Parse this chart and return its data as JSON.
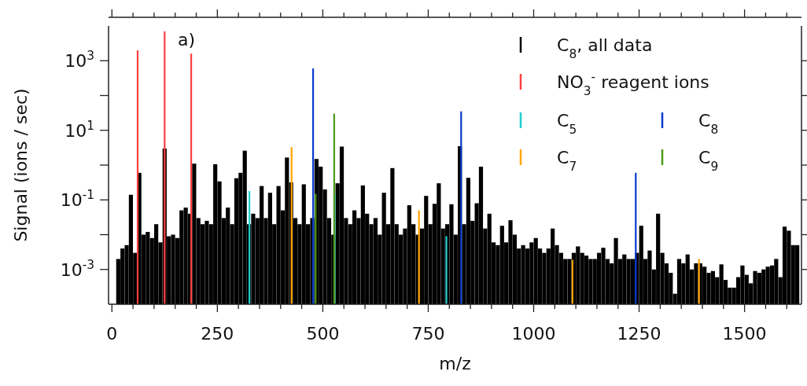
{
  "chart_data": {
    "type": "bar",
    "xlabel": "m/z",
    "ylabel": "Signal (ions / sec)",
    "log": "y",
    "legend": "top right",
    "annotations": [
      "a)"
    ],
    "xlim": [
      -8,
      1635
    ],
    "xticks": [
      0,
      {
        "value": 50,
        "label": null
      },
      {
        "value": 100,
        "label": null
      },
      {
        "value": 150,
        "label": null
      },
      {
        "value": 200,
        "label": null
      },
      250,
      {
        "value": 300,
        "label": null
      },
      {
        "value": 350,
        "label": null
      },
      {
        "value": 400,
        "label": null
      },
      {
        "value": 450,
        "label": null
      },
      500,
      {
        "value": 550,
        "label": null
      },
      {
        "value": 600,
        "label": null
      },
      {
        "value": 650,
        "label": null
      },
      {
        "value": 700,
        "label": null
      },
      750,
      {
        "value": 800,
        "label": null
      },
      {
        "value": 850,
        "label": null
      },
      {
        "value": 900,
        "label": null
      },
      {
        "value": 950,
        "label": null
      },
      1000,
      {
        "value": 1050,
        "label": null
      },
      {
        "value": 1100,
        "label": null
      },
      {
        "value": 1150,
        "label": null
      },
      {
        "value": 1200,
        "label": null
      },
      1250,
      {
        "value": 1300,
        "label": null
      },
      {
        "value": 1350,
        "label": null
      },
      {
        "value": 1400,
        "label": null
      },
      {
        "value": 1450,
        "label": null
      },
      1500,
      {
        "value": 1550,
        "label": null
      },
      {
        "value": 1600,
        "label": null
      }
    ],
    "ylim": [
      0.0001,
      10000
    ],
    "yticks": [
      {
        "value": 0.001,
        "label": "10$^{-3}$"
      },
      {
        "value": 0.01,
        "label": null
      },
      {
        "value": 0.1,
        "label": "10$^{-1}$"
      },
      {
        "value": 1,
        "label": null
      },
      {
        "value": 10,
        "label": "10$^{1}$"
      },
      {
        "value": 100,
        "label": null
      },
      {
        "value": 1000,
        "label": "10$^{3}$"
      }
    ],
    "series": [
      {
        "name": "C$_{8}$, all data",
        "color": "#000000",
        "x": [
          15,
          25,
          35,
          45,
          55,
          65,
          75,
          85,
          95,
          105,
          115,
          125,
          135,
          145,
          155,
          165,
          175,
          185,
          195,
          205,
          215,
          225,
          235,
          245,
          255,
          265,
          275,
          285,
          295,
          305,
          315,
          325,
          335,
          345,
          355,
          365,
          375,
          385,
          395,
          405,
          415,
          425,
          435,
          445,
          455,
          465,
          475,
          485,
          495,
          505,
          515,
          525,
          535,
          545,
          555,
          565,
          575,
          585,
          595,
          605,
          615,
          625,
          635,
          645,
          655,
          665,
          675,
          685,
          695,
          705,
          715,
          725,
          735,
          745,
          755,
          765,
          775,
          785,
          795,
          805,
          815,
          825,
          835,
          845,
          855,
          865,
          875,
          885,
          895,
          905,
          915,
          925,
          935,
          945,
          955,
          965,
          975,
          985,
          995,
          1005,
          1015,
          1025,
          1035,
          1045,
          1055,
          1065,
          1075,
          1085,
          1095,
          1105,
          1115,
          1125,
          1135,
          1145,
          1155,
          1165,
          1175,
          1185,
          1195,
          1205,
          1215,
          1225,
          1235,
          1245,
          1255,
          1265,
          1275,
          1285,
          1295,
          1305,
          1315,
          1325,
          1335,
          1345,
          1355,
          1365,
          1375,
          1385,
          1395,
          1405,
          1415,
          1425,
          1435,
          1445,
          1455,
          1465,
          1475,
          1485,
          1495,
          1505,
          1515,
          1525,
          1535,
          1545,
          1555,
          1565,
          1575,
          1585,
          1595,
          1605,
          1615,
          1625
        ],
        "values": [
          0.002,
          0.004,
          0.005,
          0.14,
          0.003,
          0.6,
          0.01,
          0.012,
          0.008,
          0.02,
          0.006,
          3,
          0.009,
          0.01,
          0.008,
          0.05,
          0.06,
          0.04,
          1.1,
          0.03,
          0.02,
          0.025,
          0.02,
          1.06,
          0.34,
          0.03,
          0.06,
          0.02,
          0.42,
          0.6,
          2.6,
          0.02,
          0.04,
          0.03,
          0.25,
          0.03,
          0.16,
          0.02,
          0.25,
          0.05,
          1.65,
          0.32,
          0.03,
          0.02,
          0.28,
          0.02,
          0.03,
          1.5,
          0.9,
          0.2,
          0.03,
          0.01,
          0.3,
          3.4,
          0.03,
          0.02,
          0.05,
          0.03,
          0.26,
          0.04,
          0.02,
          0.03,
          0.01,
          0.16,
          0.02,
          0.82,
          0.02,
          0.01,
          0.015,
          0.07,
          0.02,
          0.01,
          0.015,
          0.13,
          0.02,
          0.077,
          0.3,
          0.015,
          0.02,
          0.075,
          0.01,
          3.5,
          0.02,
          0.43,
          0.025,
          0.08,
          0.9,
          0.015,
          0.04,
          0.006,
          0.005,
          0.018,
          0.006,
          0.026,
          0.01,
          0.004,
          0.005,
          0.004,
          0.006,
          0.008,
          0.004,
          0.003,
          0.004,
          0.015,
          0.005,
          0.003,
          0.002,
          0.002,
          0.003,
          0.0046,
          0.003,
          0.0025,
          0.002,
          0.002,
          0.003,
          0.0042,
          0.002,
          0.0015,
          0.008,
          0.002,
          0.0027,
          0.002,
          0.002,
          0.003,
          0.018,
          0.002,
          0.0035,
          0.001,
          0.04,
          0.003,
          0.0015,
          0.0008,
          0.0002,
          0.002,
          0.0015,
          0.0027,
          0.001,
          0.0015,
          0.0015,
          0.0012,
          0.0008,
          0.0009,
          0.0006,
          0.0014,
          0.0005,
          0.0003,
          0.0003,
          0.0006,
          0.0013,
          0.0007,
          0.0004,
          0.0009,
          0.0008,
          0.001,
          0.0012,
          0.0013,
          0.002,
          0.0006,
          0.017,
          0.013,
          0.005,
          0.005
        ]
      },
      {
        "name": "NO$_{3}$$^{-}$ reagent ions",
        "color": "#ff4040",
        "x": [
          61,
          125,
          188
        ],
        "values": [
          2000,
          7000,
          1600
        ]
      },
      {
        "name": "C$_{5}$",
        "color": "#1fcfcf",
        "x": [
          326,
          528,
          793
        ],
        "values": [
          0.18,
          0.15,
          0.009
        ]
      },
      {
        "name": "C$_{7}$",
        "color": "#ffa500",
        "x": [
          426,
          728,
          1092,
          1392
        ],
        "values": [
          3.3,
          0.05,
          0.0019,
          0.002
        ]
      },
      {
        "name": "C$_{8}$",
        "color": "#0a3acc",
        "x": [
          477,
          828,
          1242
        ],
        "values": [
          600,
          35,
          0.6
        ]
      },
      {
        "name": "C$_{9}$",
        "color": "#4c9a1a",
        "x": [
          483,
          527
        ],
        "values": [
          0.15,
          30
        ]
      }
    ]
  }
}
